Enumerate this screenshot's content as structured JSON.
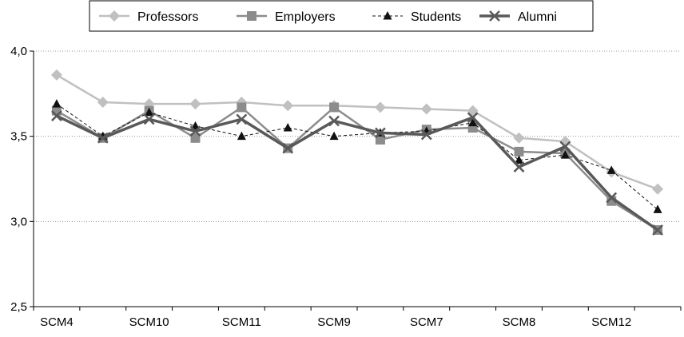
{
  "chart_data": {
    "type": "line",
    "title": "",
    "xlabel": "",
    "ylabel": "",
    "categories": [
      "SCM4",
      "",
      "SCM10",
      "",
      "SCM11",
      "",
      "SCM9",
      "",
      "SCM7",
      "",
      "SCM8",
      "",
      "SCM12",
      ""
    ],
    "y_tick_labels": [
      "2,5",
      "3,0",
      "3,5",
      "4,0"
    ],
    "y_ticks": [
      2.5,
      3.0,
      3.5,
      4.0
    ],
    "ylim": [
      2.5,
      4.0
    ],
    "grid": "horizontal dotted",
    "legend_position": "top",
    "series": [
      {
        "name": "Professors",
        "color": "#c0c0c0",
        "marker": "diamond",
        "line": "solid",
        "values": [
          3.86,
          3.7,
          3.69,
          3.69,
          3.7,
          3.68,
          3.68,
          3.67,
          3.66,
          3.65,
          3.49,
          3.47,
          3.29,
          3.19
        ]
      },
      {
        "name": "Employers",
        "color": "#8c8c8c",
        "marker": "square",
        "line": "solid",
        "values": [
          3.65,
          3.49,
          3.65,
          3.49,
          3.67,
          3.43,
          3.67,
          3.48,
          3.54,
          3.55,
          3.41,
          3.4,
          3.12,
          2.95
        ]
      },
      {
        "name": "Students",
        "color": "#111111",
        "marker": "triangle",
        "line": "dashed",
        "values": [
          3.69,
          3.5,
          3.64,
          3.56,
          3.5,
          3.55,
          3.5,
          3.52,
          3.53,
          3.58,
          3.36,
          3.39,
          3.3,
          3.07
        ]
      },
      {
        "name": "Alumni",
        "color": "#595959",
        "marker": "x",
        "line": "solid-thick",
        "values": [
          3.62,
          3.49,
          3.6,
          3.53,
          3.6,
          3.43,
          3.59,
          3.52,
          3.51,
          3.61,
          3.32,
          3.44,
          3.14,
          2.95
        ]
      }
    ]
  }
}
